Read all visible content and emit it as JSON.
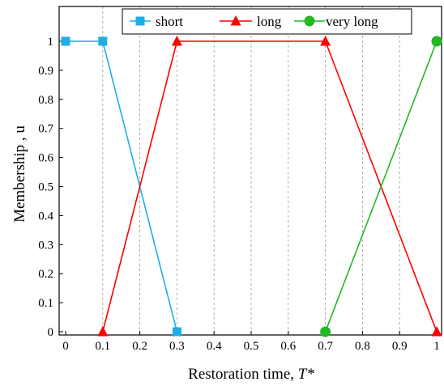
{
  "chart_data": {
    "type": "line",
    "xlabel": "Restoration time, ",
    "xlabel_italic": "T*",
    "ylabel": "Membership , u",
    "xlim": [
      0,
      1
    ],
    "ylim": [
      0,
      1.1
    ],
    "xticks": [
      "0",
      "0.1",
      "0.2",
      "0.3",
      "0.4",
      "0.5",
      "0.6",
      "0.7",
      "0.8",
      "0.9",
      "1"
    ],
    "yticks": [
      "0",
      "0.1",
      "0.2",
      "0.3",
      "0.4",
      "0.5",
      "0.6",
      "0.7",
      "0.8",
      "0.9",
      "1"
    ],
    "xgrid": "dashed vertical",
    "legend": "top",
    "series": [
      {
        "name": "short",
        "color": "#1EAEE6",
        "marker": "square",
        "x": [
          0,
          0.1,
          0.3
        ],
        "y": [
          1,
          1,
          0
        ]
      },
      {
        "name": "long",
        "color": "#FF0000",
        "marker": "triangle",
        "x": [
          0.1,
          0.3,
          0.7,
          1
        ],
        "y": [
          0,
          1,
          1,
          0
        ]
      },
      {
        "name": "very long",
        "color": "#22B822",
        "marker": "circle",
        "x": [
          0.7,
          1
        ],
        "y": [
          0,
          1
        ]
      }
    ]
  }
}
